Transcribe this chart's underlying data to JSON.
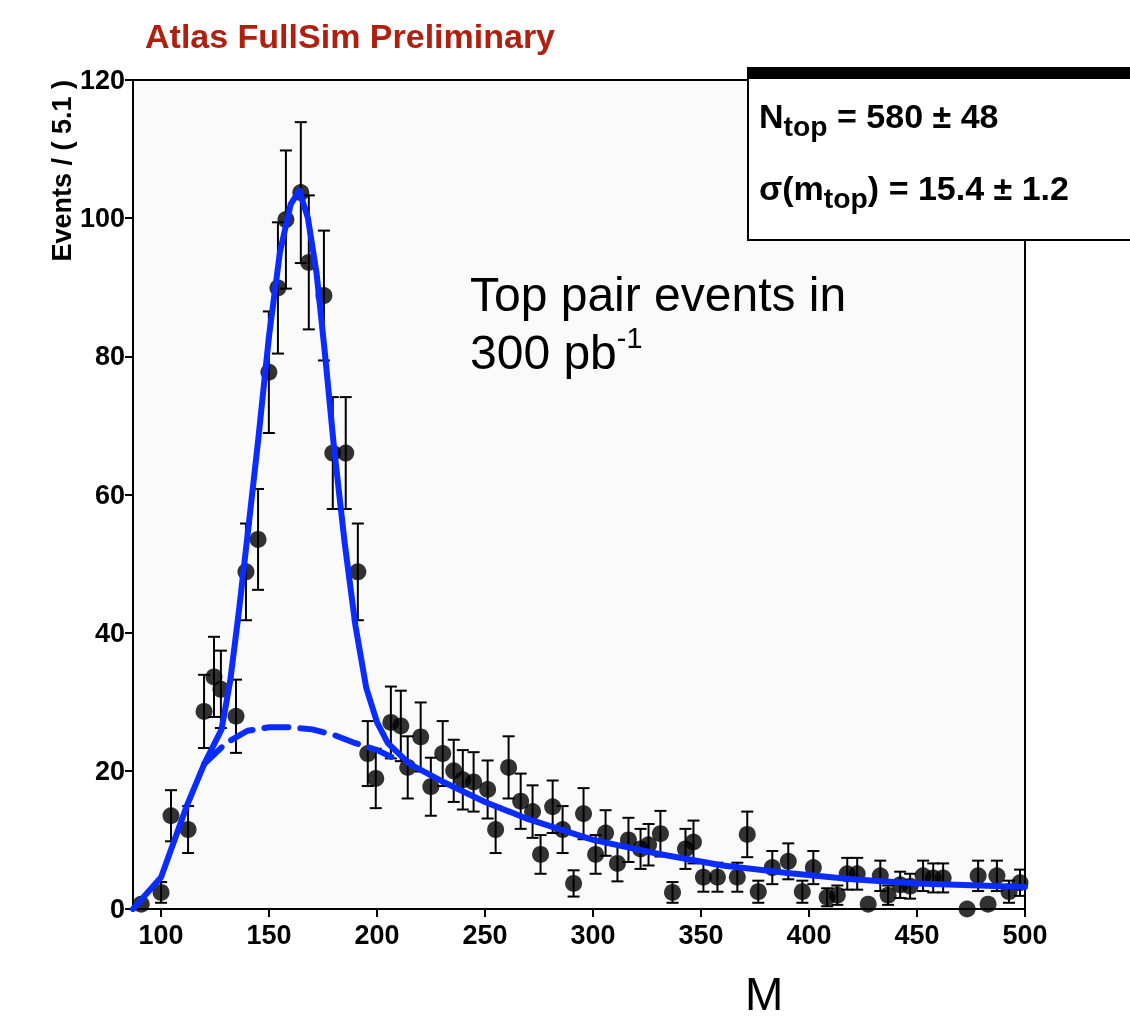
{
  "chart_data": {
    "type": "scatter",
    "title": "Atlas FullSim Preliminary",
    "xlabel": "M",
    "ylabel": "Events / ( 5.1 )",
    "annotations": [
      "Top pair events in 300 pb$^{-1}$",
      "N$_{top}$ =  580 ± 48",
      "σ(m$_{top}$) =  15.4 ± 1.2"
    ],
    "xlim": [
      87,
      500
    ],
    "xticks": [
      100,
      150,
      200,
      250,
      300,
      350,
      400,
      450,
      500
    ],
    "ylim": [
      0,
      120
    ],
    "yticks": [
      0,
      20,
      40,
      60,
      80,
      100,
      120
    ],
    "grid": false,
    "marker": "circle",
    "series": [
      {
        "color": "#000000",
        "x": [
          90.8,
          100,
          104.6,
          112.5,
          119.9,
          124.5,
          127.7,
          134.7,
          139.3,
          144.9,
          149.9,
          154.1,
          157.8,
          164.7,
          168.4,
          175.4,
          179.5,
          185.5,
          191.1,
          195.7,
          199.4,
          206.4,
          211,
          214.2,
          220.2,
          224.9,
          230.4,
          235.5,
          239.7,
          244.7,
          251.2,
          254.9,
          260.9,
          266.5,
          272,
          275.7,
          281.3,
          285.9,
          291,
          295.6,
          301.2,
          305.8,
          311.3,
          316.4,
          322,
          325.7,
          331.2,
          336.8,
          342.8,
          346.5,
          351.1,
          357.6,
          366.8,
          371.4,
          376.5,
          383,
          390.4,
          396.9,
          402,
          408.4,
          413.1,
          417.7,
          422.3,
          427.4,
          433,
          436.6,
          442.2,
          446.8,
          452.8,
          457.5,
          462.1,
          473.2,
          478.3,
          482.9,
          487,
          492.6,
          497.7
        ],
        "values": [
          0.7,
          2.4,
          13.5,
          11.5,
          28.6,
          33.6,
          31.8,
          27.9,
          48.8,
          53.5,
          77.7,
          89.9,
          99.8,
          103.7,
          93.6,
          88.8,
          66,
          66,
          48.8,
          22.5,
          18.9,
          27,
          26.5,
          20.5,
          24.9,
          17.7,
          22.5,
          20,
          18.7,
          18.4,
          17.3,
          11.5,
          20.5,
          15.6,
          14.1,
          7.9,
          14.8,
          11.5,
          3.7,
          13.8,
          7.9,
          11,
          6.6,
          10,
          8.7,
          9.3,
          10.9,
          2.4,
          8.7,
          9.7,
          4.6,
          4.6,
          4.6,
          10.8,
          2.5,
          6,
          6.9,
          2.5,
          6,
          1.7,
          2,
          5.1,
          5.1,
          0.7,
          4.8,
          2,
          3.5,
          3.3,
          4.8,
          4.5,
          4.5,
          0,
          4.8,
          0.7,
          4.8,
          2.5,
          3.8
        ],
        "errors": [
          null,
          1.5,
          3.7,
          3.4,
          5.3,
          5.8,
          5.6,
          5.3,
          7,
          7.3,
          8.8,
          9.5,
          10,
          10.2,
          9.7,
          9.4,
          8.1,
          8.1,
          7,
          4.7,
          4.3,
          5.2,
          5.1,
          4.5,
          5,
          4.2,
          4.7,
          4.5,
          4.3,
          4.3,
          4.2,
          3.4,
          4.5,
          4,
          3.8,
          2.8,
          3.8,
          3.4,
          1.9,
          3.7,
          2.8,
          3.3,
          2.6,
          3.2,
          2.9,
          3,
          3.3,
          1.5,
          2.9,
          3.1,
          2.1,
          2.1,
          2.1,
          3.3,
          1.6,
          2.4,
          2.6,
          1.6,
          2.4,
          1.3,
          1.4,
          2.3,
          2.3,
          null,
          2.2,
          1.4,
          1.9,
          1.8,
          2.2,
          2.1,
          2.1,
          null,
          2.2,
          null,
          2.2,
          1.6,
          1.9
        ]
      },
      {
        "type": "line",
        "color": "#0a2cff",
        "line_style": "solid",
        "marker": "none",
        "x": [
          87,
          100,
          112,
          120,
          128,
          132,
          136,
          140,
          145,
          150,
          155,
          160,
          164,
          168,
          172,
          176,
          180,
          185,
          190,
          195,
          200,
          205,
          215,
          230,
          250,
          270,
          300,
          330,
          360,
          390,
          420,
          450,
          500
        ],
        "values": [
          0,
          4.6,
          15,
          21,
          26,
          33,
          43,
          54,
          68,
          83,
          95,
          102,
          104,
          100,
          92,
          80,
          67,
          53,
          41,
          32,
          27,
          24,
          21,
          18.5,
          15.5,
          13,
          10,
          8,
          6.3,
          5.2,
          4.3,
          3.7,
          3.2
        ]
      },
      {
        "type": "line",
        "color": "#0a2cff",
        "line_style": "dashed",
        "marker": "none",
        "x": [
          120,
          130,
          140,
          150,
          160,
          170,
          180,
          190,
          200,
          210
        ],
        "values": [
          21,
          24,
          25.8,
          26.3,
          26.3,
          26,
          25.2,
          24,
          23,
          21.5
        ]
      }
    ]
  }
}
